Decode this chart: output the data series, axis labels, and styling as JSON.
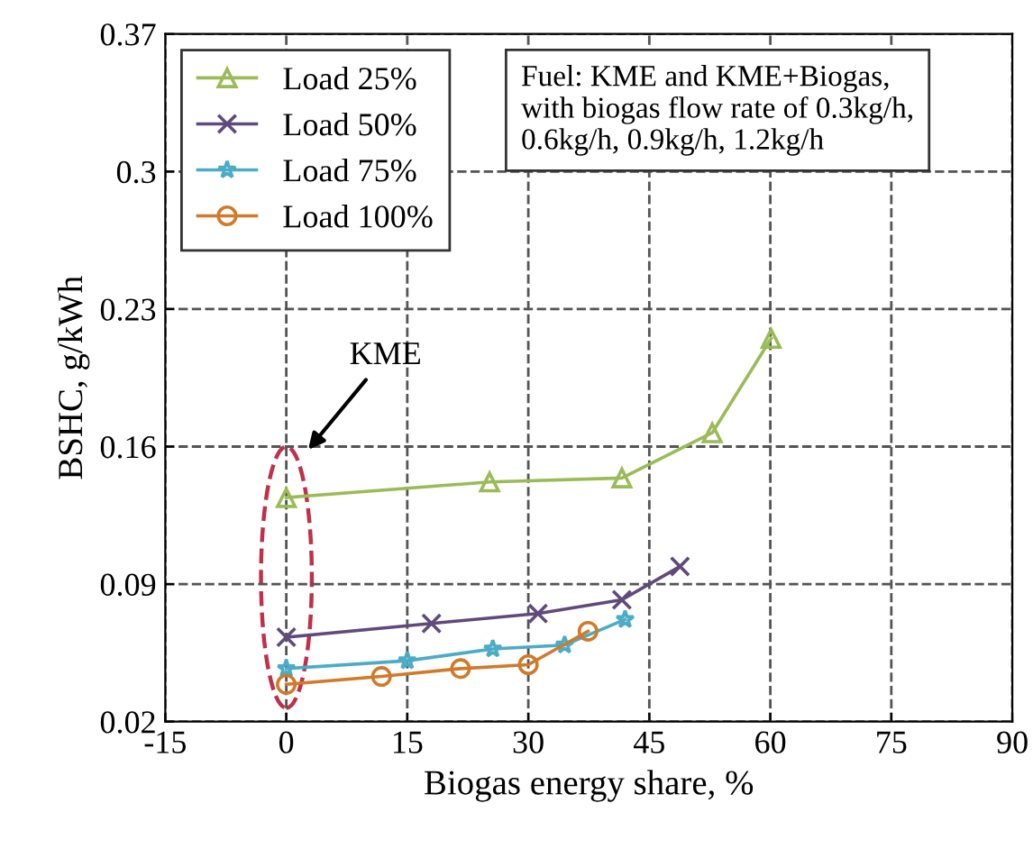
{
  "chart_data": {
    "type": "line",
    "xlabel": "Biogas energy share, %",
    "ylabel": "BSHC, g/kWh",
    "xlim": [
      -15,
      90
    ],
    "xticks": [
      -15,
      0,
      15,
      30,
      45,
      60,
      75,
      90
    ],
    "ylim": [
      0.02,
      0.37
    ],
    "yticks": [
      0.02,
      0.09,
      0.16,
      0.23,
      0.3,
      0.37
    ],
    "grid": true,
    "legend": "top left",
    "line_style": "solid",
    "annotations": [
      "KME",
      "Fuel: KME and KME+Biogas,\nwith biogas flow rate of 0.3kg/h,\n0.6kg/h, 0.9kg/h, 1.2kg/h"
    ],
    "series": [
      {
        "name": "Load 25%",
        "color": "#9bbb59",
        "marker": "triangle",
        "x": [
          0,
          25.2,
          41.6,
          52.8,
          60.1
        ],
        "values": [
          0.134,
          0.142,
          0.144,
          0.167,
          0.215
        ]
      },
      {
        "name": "Load 50%",
        "color": "#604a7b",
        "marker": "cross",
        "x": [
          0,
          18,
          31.2,
          41.6,
          48.8
        ],
        "values": [
          0.063,
          0.07,
          0.075,
          0.082,
          0.099
        ]
      },
      {
        "name": "Load 75%",
        "color": "#4bacc6",
        "marker": "star",
        "x": [
          0,
          15,
          25.6,
          34.5,
          42
        ],
        "values": [
          0.047,
          0.051,
          0.057,
          0.059,
          0.072
        ]
      },
      {
        "name": "Load 100%",
        "color": "#d07a2a",
        "marker": "circle",
        "x": [
          0,
          11.8,
          21.6,
          30,
          37.4
        ],
        "values": [
          0.039,
          0.043,
          0.047,
          0.049,
          0.066
        ]
      }
    ]
  }
}
